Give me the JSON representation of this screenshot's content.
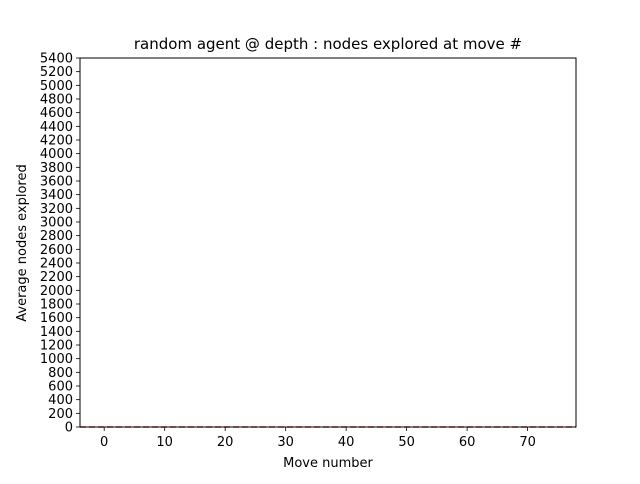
{
  "chart_data": {
    "type": "line",
    "title": "random agent @ depth : nodes explored at move #",
    "xlabel": "Move number",
    "ylabel": "Average nodes explored",
    "xlim": [
      -4,
      78
    ],
    "ylim": [
      0,
      5400
    ],
    "x_ticks": [
      0,
      10,
      20,
      30,
      40,
      50,
      60,
      70
    ],
    "y_ticks": [
      0,
      200,
      400,
      600,
      800,
      1000,
      1200,
      1400,
      1600,
      1800,
      2000,
      2200,
      2400,
      2600,
      2800,
      3000,
      3200,
      3400,
      3600,
      3800,
      4000,
      4200,
      4400,
      4600,
      4800,
      5000,
      5200,
      5400
    ],
    "grid": false,
    "series": [
      {
        "color": "#d62728",
        "line_style": "dashed",
        "x": [
          -4,
          78
        ],
        "values": [
          0,
          0
        ]
      }
    ]
  }
}
